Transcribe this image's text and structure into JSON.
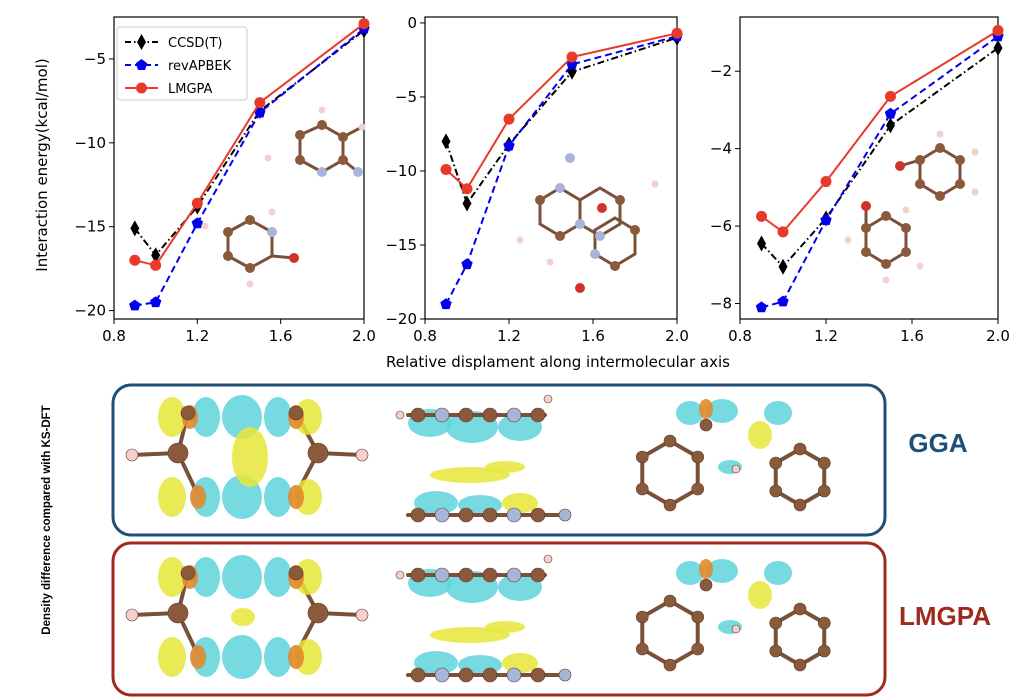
{
  "figure": {
    "y_axis_label": "Interaction energy(kcal/mol)",
    "x_axis_label": "Relative displament along intermolecular axis",
    "side_label": "Density difference compared with KS-DFT",
    "panel_labels": [
      "GGA",
      "LMGPA"
    ],
    "colors": {
      "gga_frame": "#1f4e79",
      "lmgpa_frame": "#9e2a1e",
      "iso_yellow": "#e6e63a",
      "iso_cyan": "#5fd3dc",
      "carbon": "#8b5a3c",
      "hydrogen": "#f2d0d0",
      "nitrogen": "#a9b4d9",
      "oxygen": "#d0312d"
    }
  },
  "chart_data": [
    {
      "type": "line",
      "x": [
        0.9,
        1.0,
        1.2,
        1.5,
        2.0
      ],
      "xlim": [
        0.8,
        2.0
      ],
      "ylim": [
        -20.5,
        -2.5
      ],
      "xticks": [
        "0.8",
        "1.2",
        "1.6",
        "2.0"
      ],
      "yticks": [
        "−5",
        "−10",
        "−15",
        "−20"
      ],
      "legend": "top-left",
      "series": [
        {
          "name": "CCSD(T)",
          "color": "#000000",
          "values": [
            -15.1,
            -16.7,
            -13.8,
            -8.1,
            -3.3
          ]
        },
        {
          "name": "revAPBEK",
          "color": "#0000ee",
          "values": [
            -19.7,
            -19.5,
            -14.8,
            -8.2,
            -3.2
          ]
        },
        {
          "name": "LMGPA",
          "color": "#e8392b",
          "values": [
            -17.0,
            -17.3,
            -13.6,
            -7.6,
            -2.9
          ]
        }
      ]
    },
    {
      "type": "line",
      "x": [
        0.9,
        1.0,
        1.2,
        1.5,
        2.0
      ],
      "xlim": [
        0.8,
        2.0
      ],
      "ylim": [
        -20.0,
        0.4
      ],
      "xticks": [
        "0.8",
        "1.2",
        "1.6",
        "2.0"
      ],
      "yticks": [
        "0",
        "−5",
        "−10",
        "−15",
        "−20"
      ],
      "series": [
        {
          "name": "CCSD(T)",
          "color": "#000000",
          "values": [
            -8.0,
            -12.2,
            -8.2,
            -3.3,
            -1.0
          ]
        },
        {
          "name": "revAPBEK",
          "color": "#0000ee",
          "values": [
            -19.0,
            -16.3,
            -8.3,
            -2.8,
            -0.9
          ]
        },
        {
          "name": "LMGPA",
          "color": "#e8392b",
          "values": [
            -9.9,
            -11.2,
            -6.5,
            -2.3,
            -0.7
          ]
        }
      ]
    },
    {
      "type": "line",
      "x": [
        0.9,
        1.0,
        1.2,
        1.5,
        2.0
      ],
      "xlim": [
        0.8,
        2.0
      ],
      "ylim": [
        -8.4,
        -0.6
      ],
      "xticks": [
        "0.8",
        "1.2",
        "1.6",
        "2.0"
      ],
      "yticks": [
        "−2",
        "−4",
        "−6",
        "−8"
      ],
      "series": [
        {
          "name": "CCSD(T)",
          "color": "#000000",
          "values": [
            -6.45,
            -7.05,
            -5.8,
            -3.4,
            -1.4
          ]
        },
        {
          "name": "revAPBEK",
          "color": "#0000ee",
          "values": [
            -8.1,
            -7.95,
            -5.85,
            -3.1,
            -1.1
          ]
        },
        {
          "name": "LMGPA",
          "color": "#e8392b",
          "values": [
            -5.75,
            -6.15,
            -4.85,
            -2.65,
            -0.95
          ]
        }
      ]
    }
  ]
}
